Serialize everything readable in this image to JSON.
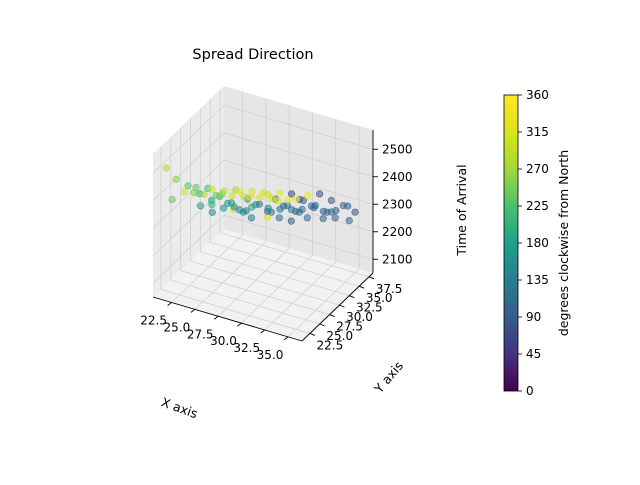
{
  "chart_data": {
    "type": "scatter",
    "projection": "3d",
    "title": "Spread Direction",
    "xlabel": "X axis",
    "ylabel": "Y axis",
    "zlabel": "Time of Arrival",
    "x_ticks": [
      "22.5",
      "25.0",
      "27.5",
      "30.0",
      "32.5",
      "35.0"
    ],
    "y_ticks": [
      "22.5",
      "25.0",
      "27.5",
      "30.0",
      "32.5",
      "35.0",
      "37.5"
    ],
    "z_ticks": [
      "2100",
      "2200",
      "2300",
      "2400",
      "2500"
    ],
    "xlim": [
      20.5,
      36.5
    ],
    "ylim": [
      20.5,
      38.5
    ],
    "zlim": [
      2050,
      2570
    ],
    "colorbar": {
      "label": "degrees clockwise from North",
      "ticks": [
        "0",
        "45",
        "90",
        "135",
        "180",
        "225",
        "270",
        "315",
        "360"
      ],
      "range": [
        0,
        360
      ],
      "colormap": "viridis"
    },
    "marker_alpha": 0.55,
    "grid": true,
    "series": [
      {
        "points": [
          [
            21.5,
            21.5,
            2515,
            285
          ],
          [
            23.0,
            22.5,
            2430,
            300
          ],
          [
            24.5,
            21.5,
            2455,
            250
          ],
          [
            26.0,
            22.5,
            2470,
            310
          ],
          [
            27.5,
            21.5,
            2480,
            260
          ],
          [
            29.0,
            22.5,
            2490,
            320
          ],
          [
            30.5,
            21.5,
            2500,
            330
          ],
          [
            32.0,
            22.5,
            2510,
            300
          ],
          [
            33.5,
            21.5,
            2515,
            330
          ],
          [
            35.0,
            22.5,
            2525,
            340
          ],
          [
            21.5,
            24.0,
            2440,
            255
          ],
          [
            23.0,
            25.5,
            2405,
            240
          ],
          [
            24.5,
            24.0,
            2415,
            275
          ],
          [
            26.0,
            25.5,
            2420,
            290
          ],
          [
            27.5,
            24.0,
            2440,
            300
          ],
          [
            29.0,
            25.5,
            2450,
            315
          ],
          [
            30.5,
            24.0,
            2465,
            320
          ],
          [
            32.0,
            25.5,
            2475,
            330
          ],
          [
            33.5,
            24.0,
            2485,
            335
          ],
          [
            35.0,
            25.5,
            2495,
            345
          ],
          [
            21.5,
            27.0,
            2375,
            230
          ],
          [
            23.0,
            28.5,
            2360,
            215
          ],
          [
            24.5,
            27.0,
            2370,
            245
          ],
          [
            26.0,
            28.5,
            2385,
            270
          ],
          [
            27.5,
            27.0,
            2395,
            290
          ],
          [
            29.0,
            28.5,
            2405,
            300
          ],
          [
            30.5,
            27.0,
            2420,
            315
          ],
          [
            32.0,
            28.5,
            2430,
            60
          ],
          [
            33.5,
            27.0,
            2445,
            80
          ],
          [
            35.0,
            28.5,
            2460,
            70
          ],
          [
            21.5,
            30.0,
            2305,
            200
          ],
          [
            23.0,
            31.5,
            2290,
            190
          ],
          [
            24.5,
            30.0,
            2300,
            170
          ],
          [
            26.0,
            31.5,
            2310,
            150
          ],
          [
            27.5,
            30.0,
            2325,
            130
          ],
          [
            29.0,
            31.5,
            2340,
            120
          ],
          [
            30.5,
            30.0,
            2350,
            110
          ],
          [
            32.0,
            31.5,
            2365,
            100
          ],
          [
            33.5,
            30.0,
            2380,
            95
          ],
          [
            35.0,
            31.5,
            2395,
            85
          ],
          [
            21.5,
            33.0,
            2240,
            185
          ],
          [
            23.0,
            34.5,
            2225,
            160
          ],
          [
            24.5,
            33.0,
            2235,
            140
          ],
          [
            26.0,
            34.5,
            2250,
            125
          ],
          [
            27.5,
            33.0,
            2260,
            115
          ],
          [
            29.0,
            34.5,
            2275,
            110
          ],
          [
            30.5,
            33.0,
            2290,
            105
          ],
          [
            32.0,
            34.5,
            2305,
            100
          ],
          [
            33.5,
            33.0,
            2320,
            95
          ],
          [
            35.0,
            34.5,
            2335,
            90
          ],
          [
            21.5,
            36.0,
            2170,
            165
          ],
          [
            23.0,
            37.5,
            2150,
            150
          ],
          [
            24.5,
            36.0,
            2165,
            130
          ],
          [
            26.0,
            37.5,
            2180,
            120
          ],
          [
            27.5,
            36.0,
            2195,
            110
          ],
          [
            29.0,
            37.5,
            2210,
            105
          ],
          [
            30.5,
            36.0,
            2225,
            100
          ],
          [
            32.0,
            37.5,
            2240,
            95
          ],
          [
            33.5,
            36.0,
            2255,
            90
          ],
          [
            35.0,
            37.5,
            2270,
            85
          ],
          [
            21.5,
            23.0,
            2380,
            240
          ],
          [
            24.5,
            26.0,
            2350,
            200
          ],
          [
            27.5,
            29.0,
            2330,
            185
          ],
          [
            30.5,
            32.0,
            2310,
            130
          ],
          [
            33.5,
            35.0,
            2290,
            110
          ],
          [
            23.0,
            35.0,
            2195,
            300
          ],
          [
            26.0,
            36.5,
            2175,
            320
          ],
          [
            29.0,
            35.5,
            2205,
            90
          ],
          [
            32.0,
            36.5,
            2230,
            95
          ],
          [
            35.0,
            36.0,
            2260,
            100
          ],
          [
            22.0,
            29.0,
            2280,
            175
          ],
          [
            25.0,
            30.5,
            2285,
            160
          ],
          [
            28.0,
            32.0,
            2290,
            140
          ],
          [
            31.0,
            33.5,
            2295,
            115
          ],
          [
            34.0,
            35.0,
            2300,
            100
          ],
          [
            22.0,
            32.0,
            2215,
            155
          ],
          [
            25.0,
            33.5,
            2230,
            135
          ],
          [
            28.0,
            35.0,
            2245,
            120
          ],
          [
            31.0,
            36.5,
            2260,
            110
          ],
          [
            34.0,
            38.0,
            2275,
            95
          ]
        ]
      }
    ]
  }
}
